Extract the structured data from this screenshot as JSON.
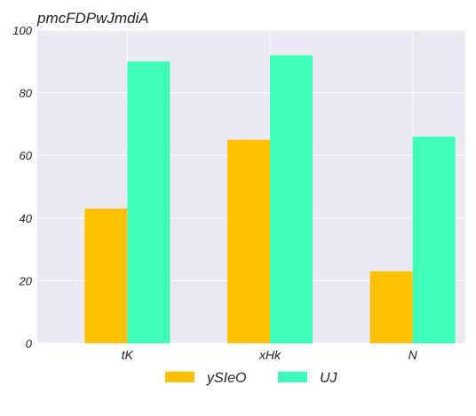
{
  "chart_data": {
    "type": "bar",
    "title": "pmcFDPwJmdiA",
    "categories": [
      "tK",
      "xHk",
      "N"
    ],
    "series": [
      {
        "name": "ySIeO",
        "color": "#FFC000",
        "values": [
          43,
          65,
          23
        ]
      },
      {
        "name": "UJ",
        "color": "#3DFFBA",
        "values": [
          90,
          92,
          66
        ]
      }
    ],
    "xlabel": "",
    "ylabel": "",
    "ylim": [
      0,
      100
    ],
    "yticks": [
      0,
      20,
      40,
      60,
      80,
      100
    ],
    "grid": true,
    "legend_position": "bottom",
    "background_color": "#EAEAF2",
    "grid_color": "#FFFFFF"
  }
}
